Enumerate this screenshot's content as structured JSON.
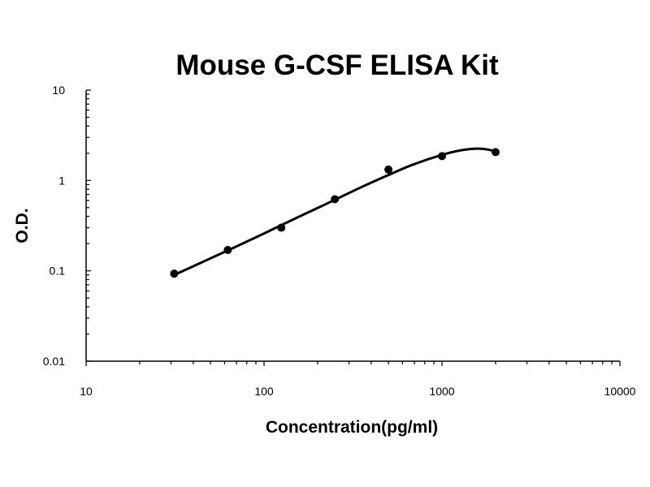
{
  "chart_data": {
    "type": "scatter",
    "title": "Mouse G-CSF ELISA Kit",
    "xlabel": "Concentration(pg/ml)",
    "ylabel": "O.D.",
    "xscale": "log",
    "yscale": "log",
    "xlim": [
      10,
      10000
    ],
    "ylim": [
      0.01,
      10
    ],
    "xticks": [
      "10",
      "100",
      "1000",
      "10000"
    ],
    "yticks": [
      "0.01",
      "0.1",
      "1",
      "10"
    ],
    "grid": false,
    "legend": "none",
    "series": [
      {
        "x": [
          31.25,
          62.5,
          125,
          250,
          500,
          1000,
          2000
        ],
        "y": [
          0.093,
          0.17,
          0.3,
          0.62,
          1.32,
          1.86,
          2.06
        ]
      }
    ],
    "fit_curve": {
      "x": [
        31.25,
        45,
        62.5,
        90,
        125,
        180,
        250,
        350,
        500,
        700,
        1000,
        1300,
        1600,
        1850,
        2000
      ],
      "y": [
        0.09,
        0.125,
        0.168,
        0.235,
        0.32,
        0.45,
        0.61,
        0.84,
        1.15,
        1.52,
        1.92,
        2.17,
        2.25,
        2.18,
        2.08
      ]
    },
    "colors": {
      "line": "#000000",
      "points": "#000000",
      "axes": "#000000"
    }
  }
}
